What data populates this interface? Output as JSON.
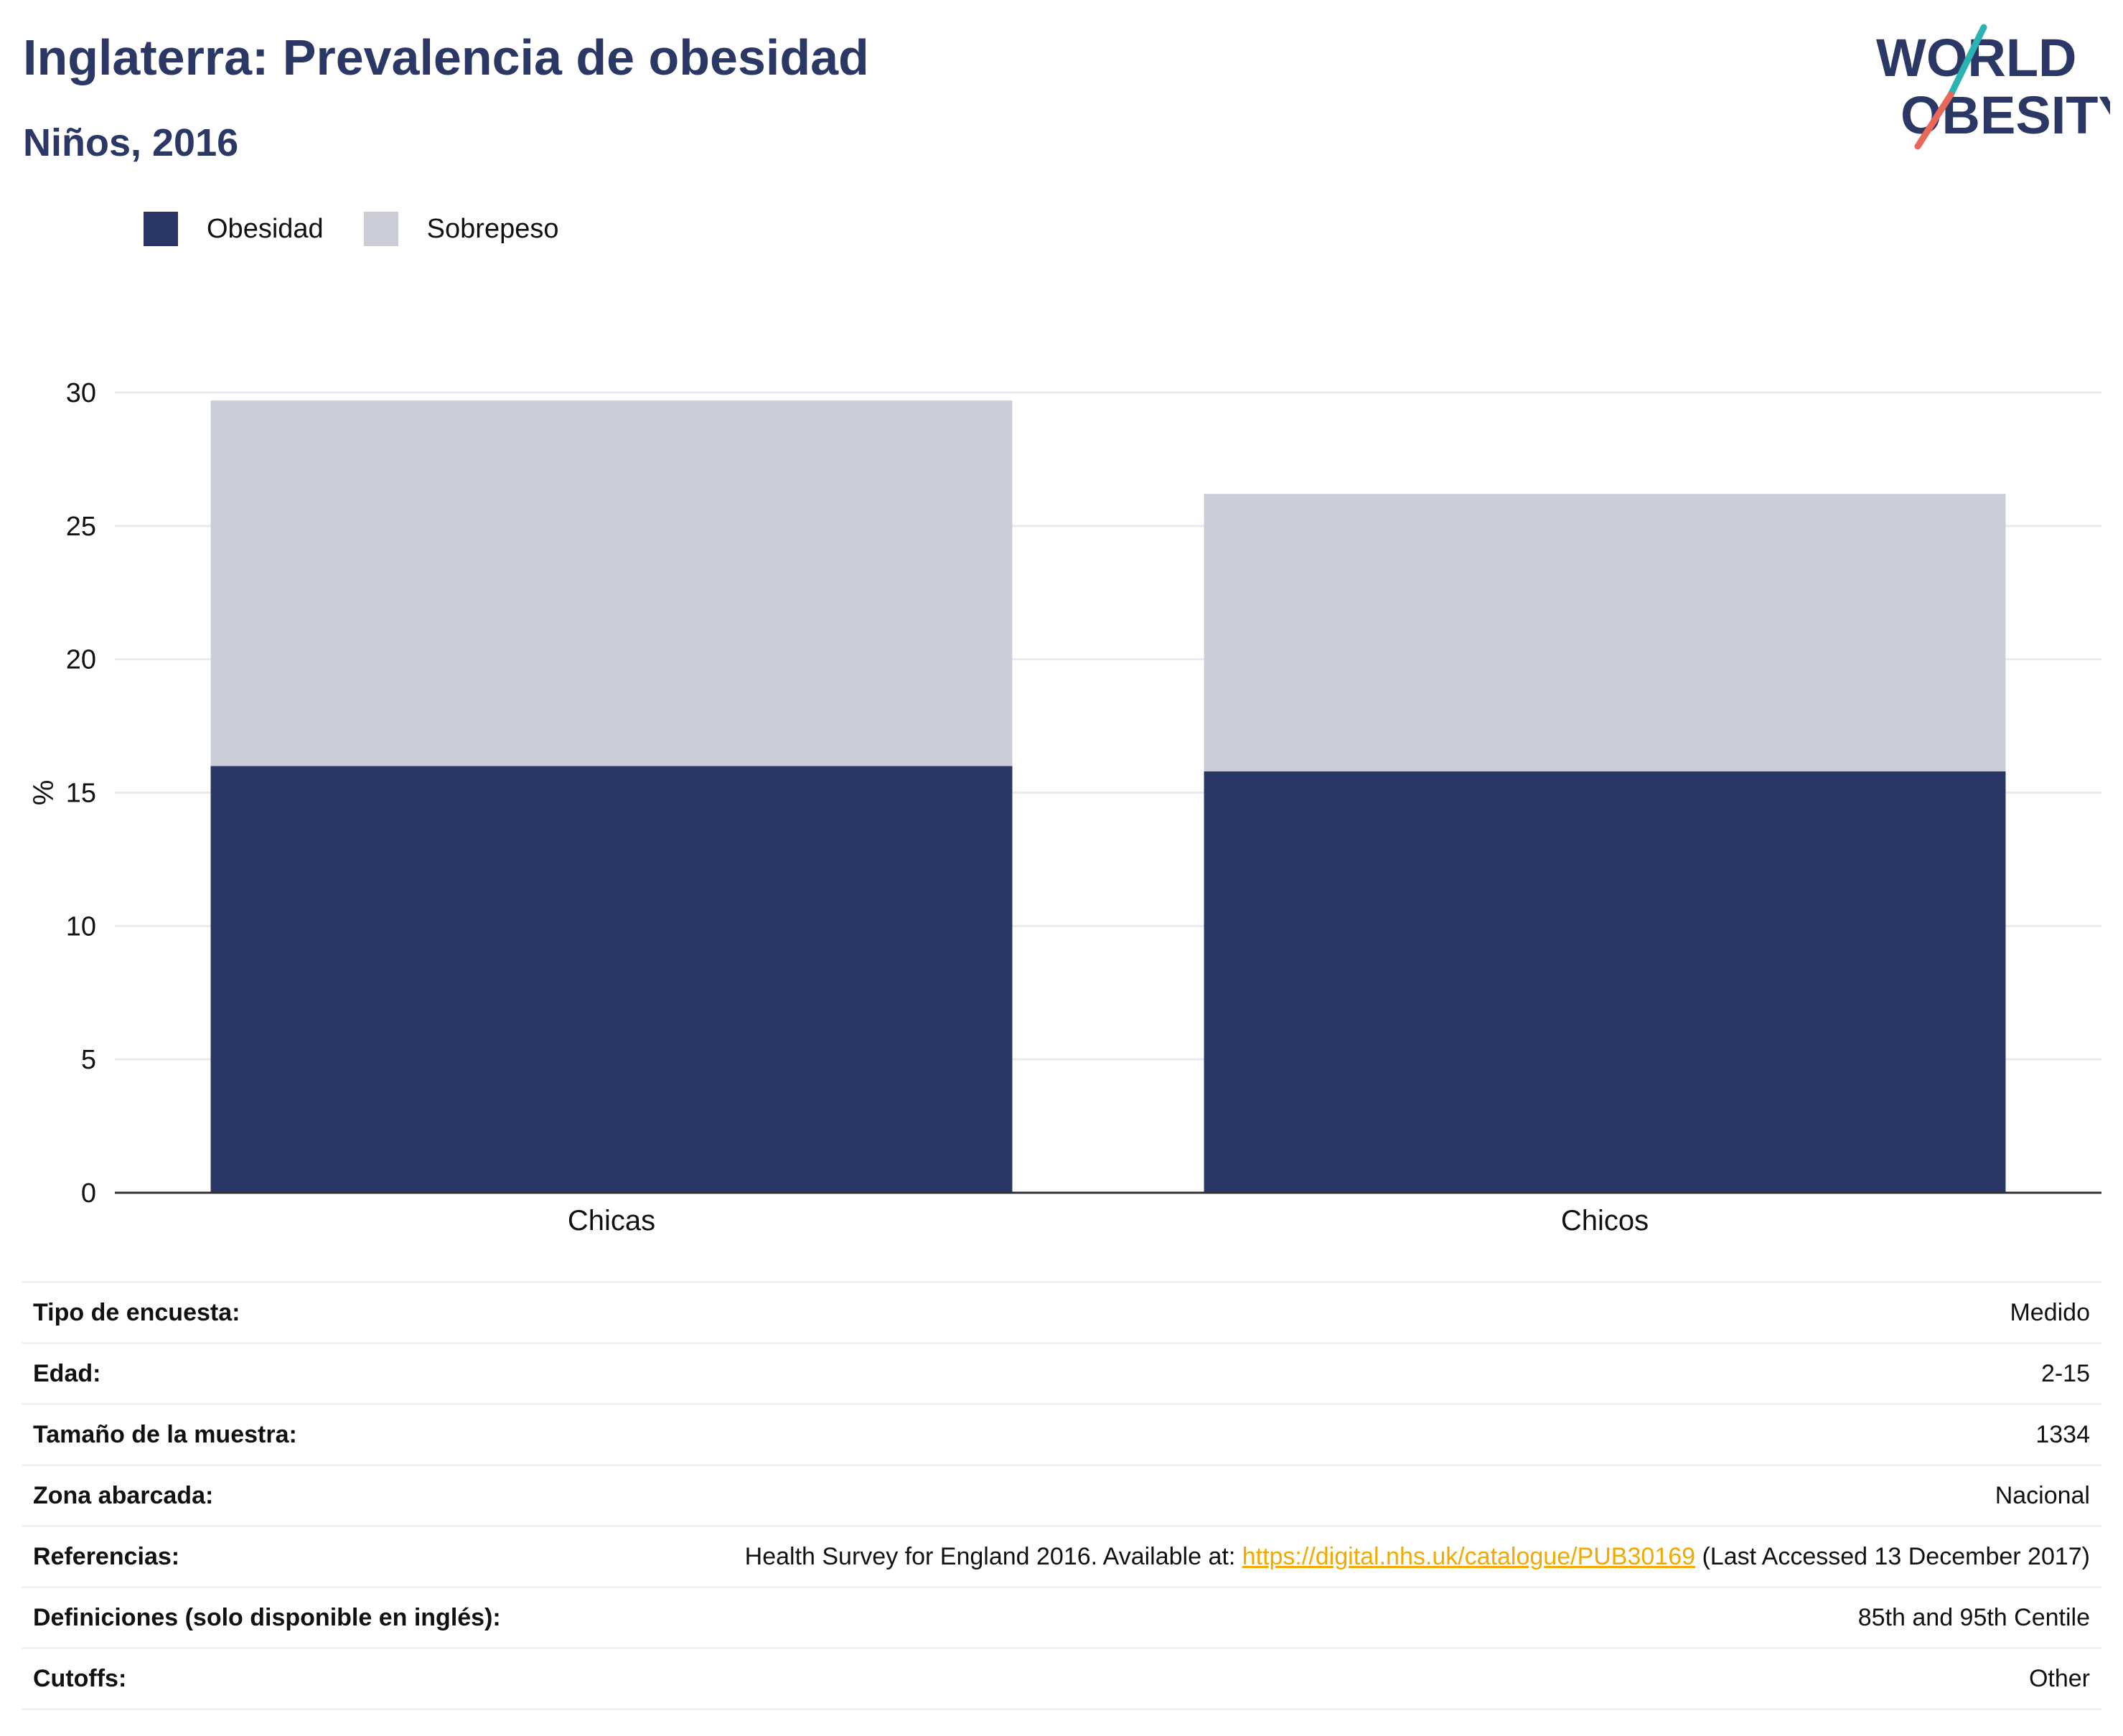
{
  "header": {
    "title": "Inglaterra: Prevalencia de obesidad",
    "subtitle": "Niños, 2016"
  },
  "logo": {
    "line1": "WORLD",
    "line2": "OBESITY",
    "colors": {
      "text": "#2b3764",
      "slash_top": "#2bb3b1",
      "slash_bottom": "#e8685a"
    }
  },
  "legend": [
    {
      "label": "Obesidad",
      "color": "#2a3663"
    },
    {
      "label": "Sobrepeso",
      "color": "#cbcdd8"
    }
  ],
  "chart_data": {
    "type": "bar",
    "stacked": true,
    "categories": [
      "Chicas",
      "Chicos"
    ],
    "series": [
      {
        "name": "Obesidad",
        "values": [
          16.0,
          15.8
        ],
        "color": "#2a3663"
      },
      {
        "name": "Sobrepeso",
        "values": [
          13.7,
          10.4
        ],
        "color": "#cbcdd8"
      }
    ],
    "title": "Inglaterra: Prevalencia de obesidad",
    "subtitle": "Niños, 2016",
    "xlabel": "",
    "ylabel": "%",
    "ylim": [
      0,
      30
    ],
    "yticks": [
      0,
      5,
      10,
      15,
      20,
      25,
      30
    ],
    "grid": true,
    "legend_position": "top-left"
  },
  "info": {
    "rows": [
      {
        "key": "Tipo de encuesta:",
        "value": "Medido"
      },
      {
        "key": "Edad:",
        "value": "2-15"
      },
      {
        "key": "Tamaño de la muestra:",
        "value": "1334"
      },
      {
        "key": "Zona abarcada:",
        "value": "Nacional"
      }
    ],
    "reference": {
      "key": "Referencias:",
      "prefix": "Health Survey for England 2016. Available at: ",
      "link": "https://digital.nhs.uk/catalogue/PUB30169",
      "suffix": " (Last Accessed 13 December 2017)"
    },
    "rows2": [
      {
        "key": "Definiciones (solo disponible en inglés):",
        "value": "85th and 95th Centile"
      },
      {
        "key": "Cutoffs:",
        "value": "Other"
      }
    ]
  }
}
